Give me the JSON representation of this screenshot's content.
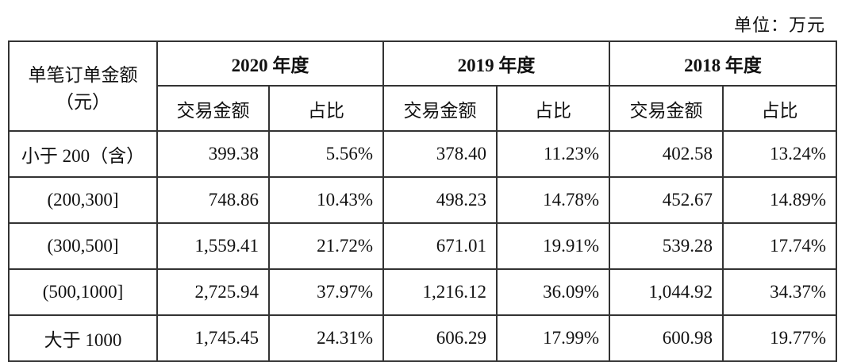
{
  "unit": "单位：万元",
  "table": {
    "corner": [
      "单笔订单金额",
      "（元）"
    ],
    "years": [
      "2020 年度",
      "2019 年度",
      "2018 年度"
    ],
    "subheaders": [
      "交易金额",
      "占比",
      "交易金额",
      "占比",
      "交易金额",
      "占比"
    ],
    "rows": [
      [
        "小于 200（含）",
        "399.38",
        "5.56%",
        "378.40",
        "11.23%",
        "402.58",
        "13.24%"
      ],
      [
        "(200,300]",
        "748.86",
        "10.43%",
        "498.23",
        "14.78%",
        "452.67",
        "14.89%"
      ],
      [
        "(300,500]",
        "1,559.41",
        "21.72%",
        "671.01",
        "19.91%",
        "539.28",
        "17.74%"
      ],
      [
        "(500,1000]",
        "2,725.94",
        "37.97%",
        "1,216.12",
        "36.09%",
        "1,044.92",
        "34.37%"
      ],
      [
        "大于 1000",
        "1,745.45",
        "24.31%",
        "606.29",
        "17.99%",
        "600.98",
        "19.77%"
      ]
    ]
  }
}
